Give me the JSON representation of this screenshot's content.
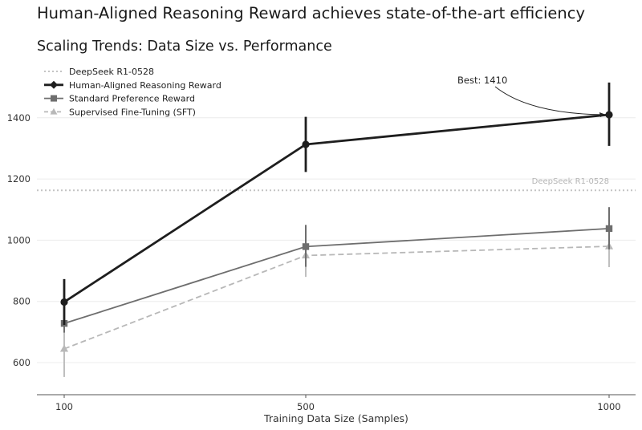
{
  "chart_data": {
    "type": "line",
    "title": "Human-Aligned Reasoning Reward achieves state-of-the-art efficiency",
    "subtitle": "Scaling Trends: Data Size vs. Performance",
    "xlabel": "Training Data Size (Samples)",
    "ylabel": "",
    "x_categories": [
      "100",
      "500",
      "1000"
    ],
    "y_ticks": [
      600,
      800,
      1000,
      1200,
      1400
    ],
    "ylim": [
      495,
      1555
    ],
    "grid": "horizontal",
    "legend_position": "top-left",
    "reference_line": {
      "name": "DeepSeek R1-0528",
      "value": 1163,
      "color": "#c4c4c4"
    },
    "annotation": {
      "text": "Best: 1410",
      "points_to": {
        "x": "1000",
        "y": 1410
      }
    },
    "series": [
      {
        "name": "Human-Aligned Reasoning Reward",
        "color": "#1e1e1e",
        "marker": "circle",
        "line": "solid",
        "values": [
          798,
          1313,
          1410
        ],
        "error_low": [
          723,
          1223,
          1308
        ],
        "error_high": [
          873,
          1403,
          1515
        ]
      },
      {
        "name": "Standard Preference Reward",
        "color": "#6e6e6e",
        "marker": "square",
        "line": "solid",
        "values": [
          728,
          979,
          1038
        ],
        "error_low": [
          698,
          913,
          970
        ],
        "error_high": [
          758,
          1050,
          1108
        ]
      },
      {
        "name": "Supervised Fine-Tuning (SFT)",
        "color": "#b8b8b8",
        "marker": "triangle",
        "line": "dashed",
        "values": [
          645,
          950,
          980
        ],
        "error_low": [
          553,
          880,
          912
        ],
        "error_high": [
          737,
          1020,
          1048
        ]
      }
    ]
  }
}
